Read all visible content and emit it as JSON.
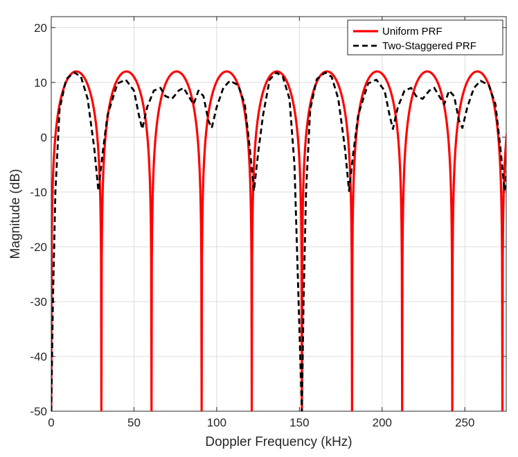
{
  "chart_data": {
    "type": "line",
    "title": "",
    "xlabel": "Doppler Frequency (kHz)",
    "ylabel": "Magnitude (dB)",
    "xlim": [
      0,
      275
    ],
    "ylim": [
      -50,
      22
    ],
    "xticks": [
      0,
      50,
      100,
      150,
      200,
      250
    ],
    "yticks": [
      -50,
      -40,
      -30,
      -20,
      -10,
      0,
      10,
      20
    ],
    "grid": true,
    "legend_position": "top-right",
    "series": [
      {
        "name": "Uniform PRF",
        "color": "#ff0000",
        "style": "solid",
        "peak_db": 12,
        "period_khz": 30.3,
        "null_freqs_khz": [
          0,
          30.3,
          60.6,
          90.9,
          121.2,
          151.5,
          181.8,
          212.1,
          242.4,
          272.7
        ]
      },
      {
        "name": "Two-Staggered PRF",
        "color": "#000000",
        "style": "dashed",
        "period_khz": 151.5,
        "points": [
          [
            0,
            -50
          ],
          [
            1,
            -30
          ],
          [
            2.5,
            -10
          ],
          [
            5,
            5
          ],
          [
            9,
            10.6
          ],
          [
            14,
            11.8
          ],
          [
            18,
            11
          ],
          [
            22,
            7
          ],
          [
            26,
            -2
          ],
          [
            28.5,
            -9.8
          ],
          [
            31,
            -3
          ],
          [
            34,
            4
          ],
          [
            40,
            9.8
          ],
          [
            45,
            10.5
          ],
          [
            50,
            8.5
          ],
          [
            53,
            4
          ],
          [
            55,
            1.5
          ],
          [
            58,
            5.5
          ],
          [
            62,
            8.5
          ],
          [
            66,
            9
          ],
          [
            69,
            7.5
          ],
          [
            73,
            7
          ],
          [
            77,
            8.5
          ],
          [
            80,
            9
          ],
          [
            83,
            7.5
          ],
          [
            86,
            6
          ],
          [
            89,
            8.5
          ],
          [
            92,
            7.5
          ],
          [
            95,
            3
          ],
          [
            97,
            1.7
          ],
          [
            100,
            5.5
          ],
          [
            104,
            9
          ],
          [
            108,
            10.3
          ],
          [
            113,
            9.5
          ],
          [
            117,
            6
          ],
          [
            120,
            -2
          ],
          [
            122.5,
            -9.8
          ],
          [
            125,
            -3
          ],
          [
            128,
            4
          ],
          [
            132,
            10.5
          ],
          [
            136,
            11.8
          ],
          [
            140,
            11
          ],
          [
            144,
            7
          ],
          [
            147,
            -5
          ],
          [
            149.5,
            -30
          ],
          [
            151.5,
            -50
          ]
        ]
      }
    ]
  }
}
